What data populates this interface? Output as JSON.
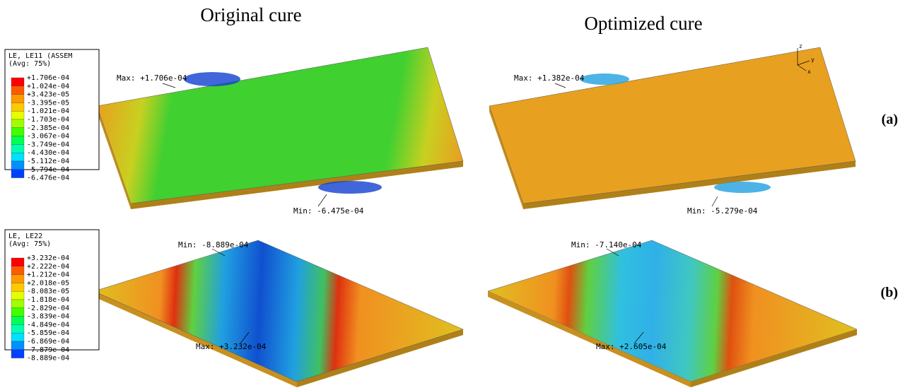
{
  "columns": [
    "Original cure",
    "Optimized cure"
  ],
  "rows": [
    "(a)",
    "(b)"
  ],
  "legends": [
    {
      "title": [
        "LE, LE11 (ASSEM",
        "(Avg: 75%)"
      ],
      "values": [
        "+1.706e-04",
        "+1.024e-04",
        "+3.423e-05",
        "-3.395e-05",
        "-1.021e-04",
        "-1.703e-04",
        "-2.385e-04",
        "-3.067e-04",
        "-3.749e-04",
        "-4.430e-04",
        "-5.112e-04",
        "-5.794e-04",
        "-6.476e-04"
      ]
    },
    {
      "title": [
        "LE, LE22",
        "(Avg: 75%)"
      ],
      "values": [
        "+3.232e-04",
        "+2.222e-04",
        "+1.212e-04",
        "+2.018e-05",
        "-8.083e-05",
        "-1.818e-04",
        "-2.829e-04",
        "-3.839e-04",
        "-4.849e-04",
        "-5.859e-04",
        "-6.869e-04",
        "-7.879e-04",
        "-8.889e-04"
      ]
    }
  ],
  "panels": [
    {
      "max": "Max: +1.706e-04",
      "min": "Min: -6.475e-04"
    },
    {
      "max": "Max: +1.382e-04",
      "min": "Min: -5.279e-04"
    },
    {
      "max": "Max: +3.232e-04",
      "min": "Min: -8.889e-04"
    },
    {
      "max": "Max: +2.605e-04",
      "min": "Min: -7.140e-04"
    }
  ],
  "triad": [
    "z",
    "y",
    "x"
  ]
}
